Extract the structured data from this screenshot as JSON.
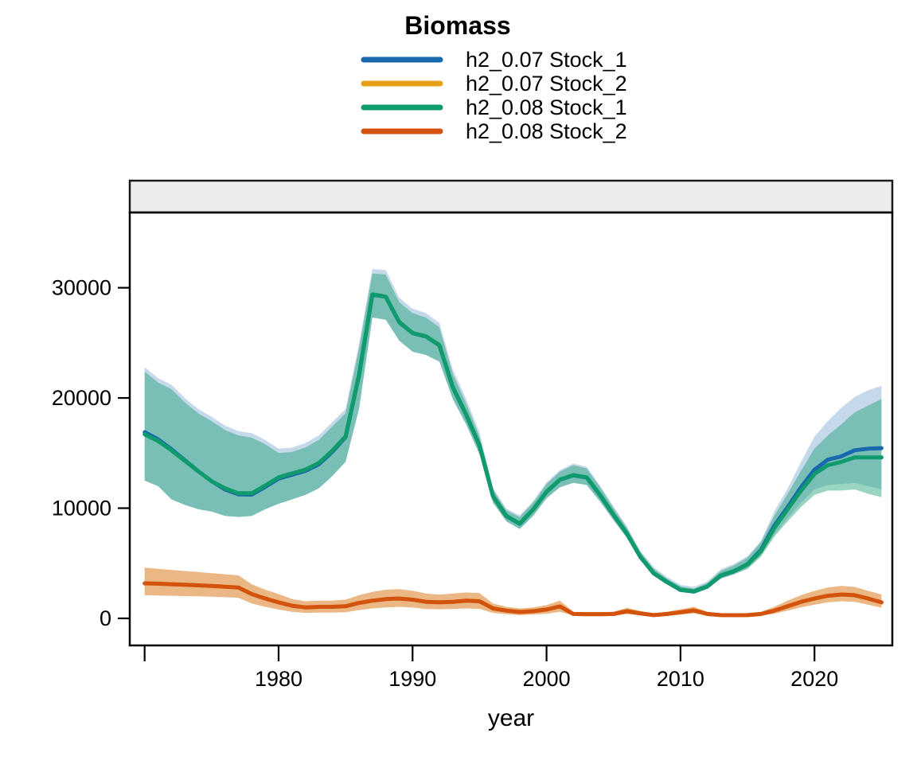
{
  "chart_data": {
    "type": "line",
    "title": "Biomass",
    "xlabel": "year",
    "ylabel": "",
    "legend_position": "top",
    "grid": false,
    "facet_strip_label": "",
    "facet_strip_color": "#ececec",
    "xlim": [
      1968.89,
      2025.81
    ],
    "ylim": [
      -2455,
      36830
    ],
    "x_ticks": [
      {
        "pos": 1970,
        "label": ""
      },
      {
        "pos": 1980,
        "label": "1980"
      },
      {
        "pos": 1990,
        "label": "1990"
      },
      {
        "pos": 2000,
        "label": "2000"
      },
      {
        "pos": 2010,
        "label": "2010"
      },
      {
        "pos": 2020,
        "label": "2020"
      }
    ],
    "y_ticks": [
      {
        "pos": 0,
        "label": "0"
      },
      {
        "pos": 10000,
        "label": "10000"
      },
      {
        "pos": 20000,
        "label": "20000"
      },
      {
        "pos": 30000,
        "label": "30000"
      }
    ],
    "x": [
      1970,
      1971,
      1972,
      1973,
      1974,
      1975,
      1976,
      1977,
      1978,
      1979,
      1980,
      1981,
      1982,
      1983,
      1984,
      1985,
      1986,
      1987,
      1988,
      1989,
      1990,
      1991,
      1992,
      1993,
      1994,
      1995,
      1996,
      1997,
      1998,
      1999,
      2000,
      2001,
      2002,
      2003,
      2004,
      2005,
      2006,
      2007,
      2008,
      2009,
      2010,
      2011,
      2012,
      2013,
      2014,
      2015,
      2016,
      2017,
      2018,
      2019,
      2020,
      2021,
      2022,
      2023,
      2024,
      2025
    ],
    "series": [
      {
        "name": "h2_0.07 Stock_1",
        "color": "#1a68ae",
        "ribbon_color": "rgba(26,104,174,0.25)",
        "values": [
          16900,
          16250,
          15350,
          14350,
          13350,
          12450,
          11700,
          11250,
          11230,
          11930,
          12680,
          13030,
          13380,
          13980,
          15100,
          16450,
          22050,
          29380,
          29180,
          26880,
          25880,
          25580,
          24780,
          20980,
          18480,
          15680,
          11080,
          9280,
          8580,
          9880,
          11480,
          12580,
          12980,
          12780,
          11180,
          9380,
          7680,
          5580,
          4080,
          3280,
          2580,
          2430,
          2880,
          3880,
          4280,
          4920,
          6200,
          8400,
          10100,
          11900,
          13500,
          14400,
          14700,
          15250,
          15400,
          15450
        ],
        "lo": [
          12500,
          12000,
          10800,
          10300,
          9900,
          9700,
          9300,
          9200,
          9300,
          9900,
          10400,
          10800,
          11200,
          11800,
          12900,
          14200,
          19000,
          27300,
          27100,
          25200,
          24200,
          23900,
          23300,
          19900,
          17600,
          14900,
          10500,
          8800,
          8100,
          9300,
          10900,
          11900,
          12300,
          12100,
          10600,
          8900,
          7300,
          5300,
          3900,
          3100,
          2450,
          2300,
          2700,
          3600,
          4000,
          4500,
          5700,
          7600,
          9100,
          10500,
          11700,
          12100,
          12200,
          12300,
          12000,
          11700
        ],
        "hi": [
          22800,
          21800,
          21200,
          20000,
          19000,
          18300,
          17500,
          17000,
          16800,
          16200,
          15400,
          15500,
          15900,
          16600,
          17800,
          19000,
          24900,
          31700,
          31600,
          29100,
          28100,
          27700,
          26800,
          22600,
          19900,
          16900,
          11850,
          9950,
          9350,
          10650,
          12350,
          13450,
          14050,
          13750,
          12050,
          10150,
          8350,
          6150,
          4650,
          3750,
          3050,
          2850,
          3350,
          4450,
          4950,
          5650,
          7050,
          9700,
          11800,
          14200,
          16500,
          17900,
          19100,
          20100,
          20700,
          21100
        ]
      },
      {
        "name": "h2_0.07 Stock_2",
        "color": "#e69f17",
        "ribbon_color": "rgba(230,159,23,0.30)",
        "values": [
          3180,
          3150,
          3100,
          3050,
          3000,
          2950,
          2870,
          2800,
          2200,
          1800,
          1450,
          1150,
          1000,
          1050,
          1050,
          1100,
          1400,
          1600,
          1750,
          1800,
          1700,
          1500,
          1450,
          1500,
          1600,
          1550,
          900,
          700,
          580,
          650,
          800,
          1080,
          400,
          380,
          380,
          400,
          650,
          450,
          300,
          400,
          550,
          720,
          400,
          300,
          290,
          300,
          400,
          700,
          1100,
          1500,
          1800,
          2050,
          2170,
          2100,
          1800,
          1450
        ],
        "lo": [
          2100,
          2080,
          2050,
          2020,
          2000,
          1970,
          1920,
          1870,
          1350,
          1050,
          800,
          600,
          500,
          530,
          530,
          560,
          750,
          900,
          1000,
          1050,
          980,
          850,
          820,
          850,
          900,
          870,
          500,
          380,
          300,
          340,
          420,
          600,
          250,
          230,
          230,
          250,
          400,
          280,
          180,
          250,
          350,
          450,
          250,
          180,
          170,
          180,
          250,
          420,
          700,
          1000,
          1250,
          1450,
          1550,
          1500,
          1250,
          950
        ],
        "hi": [
          4600,
          4500,
          4400,
          4300,
          4200,
          4100,
          4000,
          3900,
          3100,
          2600,
          2200,
          1750,
          1550,
          1600,
          1600,
          1700,
          2100,
          2400,
          2600,
          2650,
          2500,
          2250,
          2150,
          2250,
          2350,
          2300,
          1350,
          1050,
          900,
          1000,
          1200,
          1600,
          600,
          560,
          560,
          600,
          950,
          680,
          450,
          600,
          820,
          1050,
          600,
          450,
          430,
          450,
          600,
          1050,
          1600,
          2100,
          2500,
          2800,
          2950,
          2850,
          2500,
          2170
        ]
      },
      {
        "name": "h2_0.08 Stock_1",
        "color": "#0f9b6c",
        "ribbon_color": "rgba(15,155,108,0.42)",
        "values": [
          16700,
          16100,
          15250,
          14300,
          13350,
          12450,
          11800,
          11350,
          11350,
          12050,
          12800,
          13150,
          13500,
          14100,
          15200,
          16500,
          22100,
          29400,
          29200,
          26900,
          25900,
          25600,
          24800,
          21000,
          18500,
          15700,
          11100,
          9300,
          8600,
          9900,
          11500,
          12600,
          13000,
          12800,
          11200,
          9400,
          7700,
          5600,
          4100,
          3300,
          2600,
          2450,
          2900,
          3900,
          4300,
          4900,
          6100,
          8200,
          9900,
          11600,
          13100,
          13900,
          14200,
          14600,
          14600,
          14600
        ],
        "lo": [
          12500,
          12000,
          10800,
          10300,
          9900,
          9700,
          9300,
          9200,
          9300,
          9900,
          10400,
          10800,
          11200,
          11800,
          12900,
          14200,
          19000,
          27300,
          27100,
          25200,
          24200,
          23900,
          23300,
          19900,
          17600,
          14900,
          10500,
          8800,
          8100,
          9300,
          10900,
          11900,
          12300,
          12100,
          10600,
          8900,
          7300,
          5300,
          3900,
          3100,
          2450,
          2300,
          2700,
          3600,
          4000,
          4500,
          5600,
          7400,
          8800,
          10100,
          11200,
          11600,
          11600,
          11700,
          11300,
          11000
        ],
        "hi": [
          22400,
          21400,
          20800,
          19600,
          18600,
          17900,
          17100,
          16600,
          16400,
          15800,
          15000,
          15100,
          15500,
          16200,
          17400,
          18600,
          24500,
          31300,
          31200,
          28700,
          27700,
          27300,
          26400,
          22200,
          19500,
          16500,
          11700,
          9800,
          9200,
          10500,
          12200,
          13300,
          13900,
          13600,
          11900,
          10000,
          8200,
          6000,
          4500,
          3600,
          2900,
          2700,
          3200,
          4300,
          4800,
          5500,
          6900,
          9300,
          11300,
          13400,
          15400,
          16600,
          17600,
          18700,
          19300,
          19900
        ]
      },
      {
        "name": "h2_0.08 Stock_2",
        "color": "#d2520e",
        "ribbon_color": "rgba(210,82,14,0.30)",
        "values": [
          3180,
          3150,
          3100,
          3050,
          3000,
          2950,
          2870,
          2800,
          2200,
          1800,
          1450,
          1150,
          1000,
          1050,
          1050,
          1100,
          1400,
          1600,
          1750,
          1800,
          1700,
          1500,
          1450,
          1500,
          1600,
          1550,
          900,
          700,
          580,
          650,
          800,
          1080,
          400,
          380,
          380,
          400,
          650,
          450,
          300,
          400,
          550,
          720,
          400,
          300,
          290,
          300,
          400,
          700,
          1100,
          1500,
          1800,
          2050,
          2170,
          2100,
          1800,
          1450
        ],
        "lo": [
          2100,
          2080,
          2050,
          2020,
          2000,
          1970,
          1920,
          1870,
          1350,
          1050,
          800,
          600,
          500,
          530,
          530,
          560,
          750,
          900,
          1000,
          1050,
          980,
          850,
          820,
          850,
          900,
          870,
          500,
          380,
          300,
          340,
          420,
          600,
          250,
          230,
          230,
          250,
          400,
          280,
          180,
          250,
          350,
          450,
          250,
          180,
          170,
          180,
          250,
          420,
          700,
          1000,
          1250,
          1450,
          1550,
          1500,
          1250,
          950
        ],
        "hi": [
          4600,
          4500,
          4400,
          4300,
          4200,
          4100,
          4000,
          3900,
          3100,
          2600,
          2200,
          1750,
          1550,
          1600,
          1600,
          1700,
          2100,
          2400,
          2600,
          2650,
          2500,
          2250,
          2150,
          2250,
          2350,
          2300,
          1350,
          1050,
          900,
          1000,
          1200,
          1600,
          600,
          560,
          560,
          600,
          950,
          680,
          450,
          600,
          820,
          1050,
          600,
          450,
          430,
          450,
          600,
          1050,
          1600,
          2100,
          2500,
          2800,
          2950,
          2850,
          2500,
          2170
        ]
      }
    ]
  }
}
